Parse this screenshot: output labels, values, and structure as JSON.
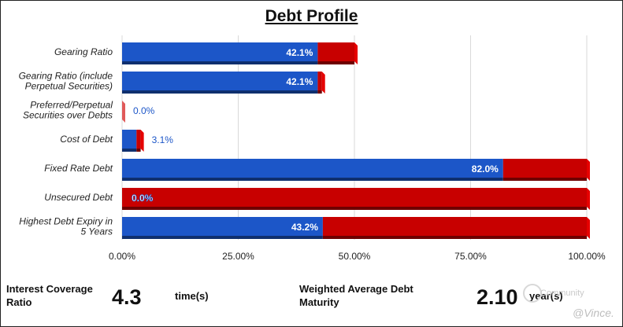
{
  "chart_data": {
    "type": "bar",
    "orientation": "horizontal",
    "stacked": true,
    "title": "Debt Profile",
    "xlim": [
      0,
      100
    ],
    "x_ticks": [
      0,
      25,
      50,
      75,
      100
    ],
    "x_tick_labels": [
      "0.00%",
      "25.00%",
      "50.00%",
      "75.00%",
      "100.00%"
    ],
    "grid": true,
    "categories": [
      [
        "Gearing Ratio"
      ],
      [
        "Gearing Ratio (include",
        "Perpetual Securities)"
      ],
      [
        "Preferred/Perpetual",
        "Securities over Debts"
      ],
      [
        "Cost of Debt"
      ],
      [
        "Fixed Rate Debt"
      ],
      [
        "Unsecured Debt"
      ],
      [
        "Highest Debt Expiry in",
        "5 Years"
      ]
    ],
    "series": [
      {
        "name": "value",
        "color": "#1c56c8",
        "values": [
          42.1,
          42.1,
          0.0,
          3.1,
          82.0,
          0.0,
          43.2
        ]
      },
      {
        "name": "remainder",
        "color": "#c80000",
        "values": [
          7.9,
          0.9,
          0.0,
          0.9,
          18.0,
          100.0,
          56.8
        ]
      }
    ],
    "data_labels": [
      "42.1%",
      "42.1%",
      "0.0%",
      "3.1%",
      "82.0%",
      "0.0%",
      "43.2%"
    ]
  },
  "footer": {
    "interest_coverage": {
      "label": "Interest Coverage Ratio",
      "value": "4.3",
      "unit": "time(s)"
    },
    "debt_maturity": {
      "label": "Weighted Average Debt Maturity",
      "value": "2.10",
      "unit": "year(s)"
    }
  },
  "watermark": {
    "community": "Community",
    "author": "@Vince."
  }
}
